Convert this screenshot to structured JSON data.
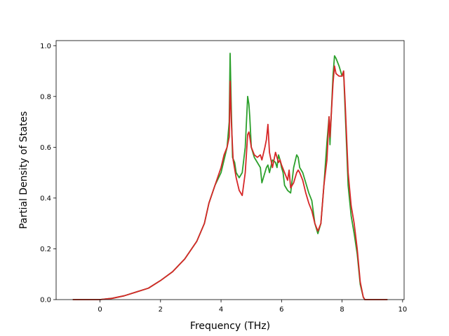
{
  "chart_data": {
    "type": "line",
    "xlabel": "Frequency (THz)",
    "ylabel": "Partial Density of States",
    "xlim": [
      -1.45,
      10.05
    ],
    "ylim": [
      0.0,
      1.02
    ],
    "xticks": [
      0,
      2,
      4,
      6,
      8,
      10
    ],
    "yticks": [
      0.0,
      0.2,
      0.4,
      0.6,
      0.8,
      1.0
    ],
    "grid": false,
    "legend": "none",
    "series": [
      {
        "color": "#2ca02c",
        "x": [
          -0.9,
          -0.5,
          0,
          0.4,
          0.8,
          1.2,
          1.6,
          2.0,
          2.4,
          2.8,
          3.2,
          3.45,
          3.6,
          3.8,
          4.0,
          4.2,
          4.27,
          4.3,
          4.34,
          4.38,
          4.45,
          4.5,
          4.6,
          4.7,
          4.8,
          4.88,
          4.92,
          4.95,
          5.0,
          5.05,
          5.1,
          5.2,
          5.3,
          5.35,
          5.4,
          5.5,
          5.55,
          5.6,
          5.7,
          5.8,
          5.85,
          5.9,
          5.95,
          6.0,
          6.05,
          6.1,
          6.2,
          6.3,
          6.35,
          6.4,
          6.5,
          6.55,
          6.6,
          6.7,
          6.8,
          6.9,
          7.0,
          7.1,
          7.2,
          7.3,
          7.4,
          7.5,
          7.57,
          7.6,
          7.65,
          7.7,
          7.75,
          7.8,
          7.9,
          8.0,
          8.05,
          8.1,
          8.2,
          8.3,
          8.4,
          8.5,
          8.6,
          8.7,
          8.75,
          9.0,
          9.5
        ],
        "y": [
          0.0,
          0.0,
          0.0,
          0.005,
          0.015,
          0.03,
          0.045,
          0.075,
          0.11,
          0.16,
          0.23,
          0.3,
          0.38,
          0.45,
          0.5,
          0.6,
          0.7,
          0.97,
          0.75,
          0.56,
          0.54,
          0.5,
          0.48,
          0.5,
          0.6,
          0.8,
          0.77,
          0.72,
          0.6,
          0.58,
          0.56,
          0.54,
          0.52,
          0.46,
          0.48,
          0.52,
          0.53,
          0.5,
          0.55,
          0.54,
          0.52,
          0.57,
          0.55,
          0.52,
          0.5,
          0.45,
          0.43,
          0.42,
          0.47,
          0.52,
          0.57,
          0.56,
          0.52,
          0.5,
          0.46,
          0.42,
          0.39,
          0.3,
          0.26,
          0.3,
          0.45,
          0.62,
          0.72,
          0.61,
          0.75,
          0.88,
          0.96,
          0.95,
          0.92,
          0.88,
          0.9,
          0.75,
          0.45,
          0.33,
          0.26,
          0.18,
          0.06,
          0.01,
          0.0,
          0.0,
          0.0
        ]
      },
      {
        "color": "#d62728",
        "x": [
          -0.9,
          -0.5,
          0,
          0.4,
          0.8,
          1.2,
          1.6,
          2.0,
          2.4,
          2.8,
          3.2,
          3.45,
          3.6,
          3.8,
          4.0,
          4.1,
          4.2,
          4.27,
          4.3,
          4.34,
          4.4,
          4.5,
          4.6,
          4.7,
          4.8,
          4.88,
          4.92,
          4.95,
          5.0,
          5.1,
          5.2,
          5.3,
          5.35,
          5.45,
          5.5,
          5.55,
          5.6,
          5.7,
          5.8,
          5.85,
          5.9,
          5.95,
          6.0,
          6.1,
          6.2,
          6.25,
          6.3,
          6.4,
          6.5,
          6.55,
          6.6,
          6.7,
          6.8,
          6.9,
          7.0,
          7.1,
          7.2,
          7.3,
          7.4,
          7.5,
          7.57,
          7.6,
          7.63,
          7.7,
          7.75,
          7.8,
          7.9,
          8.0,
          8.05,
          8.1,
          8.2,
          8.3,
          8.4,
          8.5,
          8.6,
          8.7,
          8.75,
          9.0,
          9.5
        ],
        "y": [
          0.0,
          0.0,
          0.0,
          0.005,
          0.015,
          0.03,
          0.045,
          0.075,
          0.11,
          0.16,
          0.23,
          0.3,
          0.38,
          0.45,
          0.52,
          0.57,
          0.6,
          0.64,
          0.86,
          0.7,
          0.55,
          0.48,
          0.43,
          0.41,
          0.5,
          0.65,
          0.66,
          0.64,
          0.6,
          0.57,
          0.56,
          0.57,
          0.55,
          0.6,
          0.63,
          0.69,
          0.58,
          0.52,
          0.58,
          0.56,
          0.54,
          0.55,
          0.53,
          0.5,
          0.47,
          0.51,
          0.44,
          0.46,
          0.5,
          0.51,
          0.5,
          0.47,
          0.42,
          0.38,
          0.35,
          0.3,
          0.27,
          0.3,
          0.45,
          0.55,
          0.72,
          0.64,
          0.7,
          0.85,
          0.92,
          0.89,
          0.88,
          0.88,
          0.9,
          0.78,
          0.5,
          0.37,
          0.3,
          0.2,
          0.07,
          0.01,
          0.0,
          0.0,
          0.0
        ]
      }
    ]
  }
}
